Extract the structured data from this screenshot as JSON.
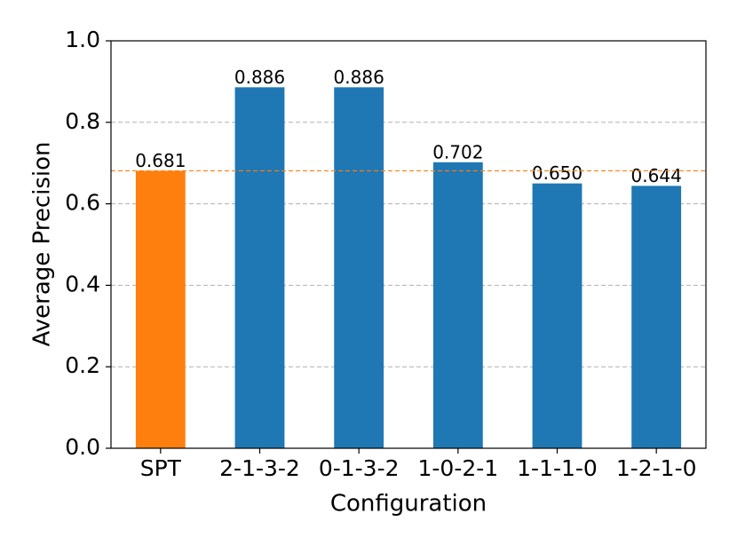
{
  "chart_data": {
    "type": "bar",
    "x_label": "Configuration",
    "y_label": "Average Precision",
    "categories": [
      "SPT",
      "2-1-3-2",
      "0-1-3-2",
      "1-0-2-1",
      "1-1-1-0",
      "1-2-1-0"
    ],
    "values": [
      0.681,
      0.886,
      0.886,
      0.702,
      0.65,
      0.644
    ],
    "value_labels": [
      "0.681",
      "0.886",
      "0.886",
      "0.702",
      "0.650",
      "0.644"
    ],
    "colors": [
      "#ff7f0e",
      "#1f77b4",
      "#1f77b4",
      "#1f77b4",
      "#1f77b4",
      "#1f77b4"
    ],
    "reference_line": {
      "value": 0.681,
      "color": "#ff7f0e"
    },
    "ylim": [
      0,
      1
    ],
    "yticks": [
      {
        "value": 0,
        "label": "0.0"
      },
      0.2,
      0.4,
      0.6,
      0.8,
      {
        "value": 1,
        "label": "1.0"
      }
    ],
    "grid": true
  }
}
